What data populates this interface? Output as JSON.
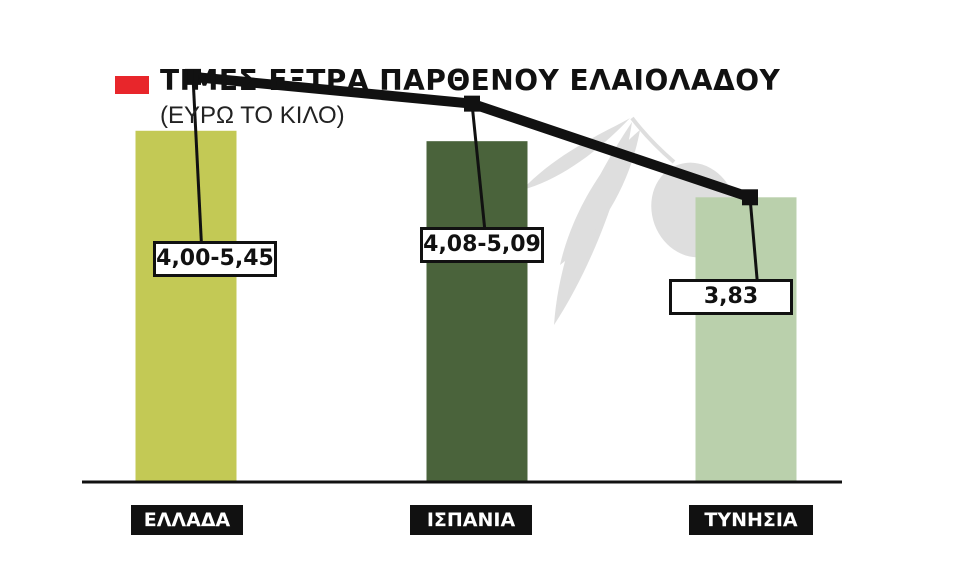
{
  "chart_data": {
    "type": "bar",
    "title": "ΤΙΜΕΣ ΕΞΤΡΑ ΠΑΡΘΕΝΟΥ ΕΛΑΙΟΛΑΔΟΥ",
    "subtitle": "(ΕΥΡΩ ΤΟ ΚΙΛΟ)",
    "categories": [
      "ΕΛΛΑΔΑ",
      "ΙΣΠΑΝΙΑ",
      "ΤΥΝΗΣΙΑ"
    ],
    "bar_colors": [
      "#c3c955",
      "#4a633b",
      "#bad0ac"
    ],
    "value_labels": [
      "4,00-5,45",
      "4,08-5,09",
      "3,83"
    ],
    "series": [
      {
        "type": "bar",
        "values": [
          4.725,
          4.585,
          3.83
        ]
      },
      {
        "type": "line",
        "values": [
          5.45,
          5.09,
          3.83
        ]
      }
    ],
    "ylim": [
      0,
      6
    ],
    "legend": {
      "color": "#e8262b",
      "position": "top-left"
    },
    "grid": false
  },
  "decoration": {
    "icon": "olive-branch-icon",
    "color": "#dedede"
  }
}
